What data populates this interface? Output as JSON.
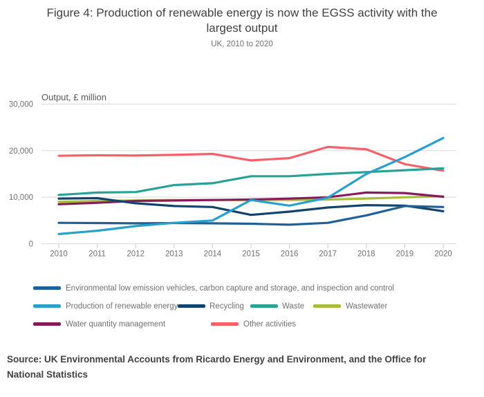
{
  "header": {
    "title_line1": "Figure 4: Production of renewable energy is now the EGSS activity with the",
    "title_line2": "largest output",
    "subtitle": "UK, 2010 to 2020"
  },
  "chart_data": {
    "type": "line",
    "title": "Figure 4: Production of renewable energy is now the EGSS activity with the largest output",
    "subtitle": "UK, 2010 to 2020",
    "axis_title": "Output, £ million",
    "xlabel": "",
    "ylabel": "Output, £ million",
    "x": [
      2010,
      2011,
      2012,
      2013,
      2014,
      2015,
      2016,
      2017,
      2018,
      2019,
      2020
    ],
    "ylim": [
      0,
      30000
    ],
    "y_ticks": [
      0,
      10000,
      20000,
      30000
    ],
    "y_tick_labels": [
      "0",
      "10,000",
      "20,000",
      "30,000"
    ],
    "grid": "horizontal",
    "legend_position": "bottom",
    "series": [
      {
        "name": "Environmental low emission vehicles, carbon capture and storage, and inspection and control",
        "color": "#206095",
        "values": [
          4500,
          4450,
          4400,
          4450,
          4400,
          4300,
          4100,
          4500,
          6100,
          8100,
          7900
        ]
      },
      {
        "name": "Production of renewable energy",
        "color": "#27a0cc",
        "values": [
          2100,
          2800,
          3800,
          4500,
          5000,
          9400,
          8200,
          9900,
          15000,
          18600,
          22700
        ]
      },
      {
        "name": "Recycling",
        "color": "#12436d",
        "values": [
          9700,
          9800,
          8700,
          8100,
          7900,
          6200,
          6900,
          7800,
          8300,
          8200,
          7000
        ]
      },
      {
        "name": "Waste",
        "color": "#28a197",
        "values": [
          10500,
          11000,
          11100,
          12600,
          13000,
          14500,
          14500,
          15000,
          15400,
          15800,
          16200
        ]
      },
      {
        "name": "Wastewater",
        "color": "#a8bd3a",
        "values": [
          9000,
          9200,
          9300,
          9400,
          9400,
          9400,
          9400,
          9500,
          9700,
          10000,
          10200
        ]
      },
      {
        "name": "Water quantity management",
        "color": "#871a5b",
        "values": [
          8500,
          8800,
          9200,
          9300,
          9400,
          9500,
          9700,
          10000,
          11000,
          10900,
          10100
        ]
      },
      {
        "name": "Other activities",
        "color": "#f66068",
        "values": [
          18900,
          19000,
          18950,
          19100,
          19300,
          17900,
          18400,
          20800,
          20300,
          17100,
          15700
        ]
      }
    ]
  },
  "source": "Source: UK Environmental Accounts from Ricardo Energy and Environment, and the Office for National Statistics"
}
